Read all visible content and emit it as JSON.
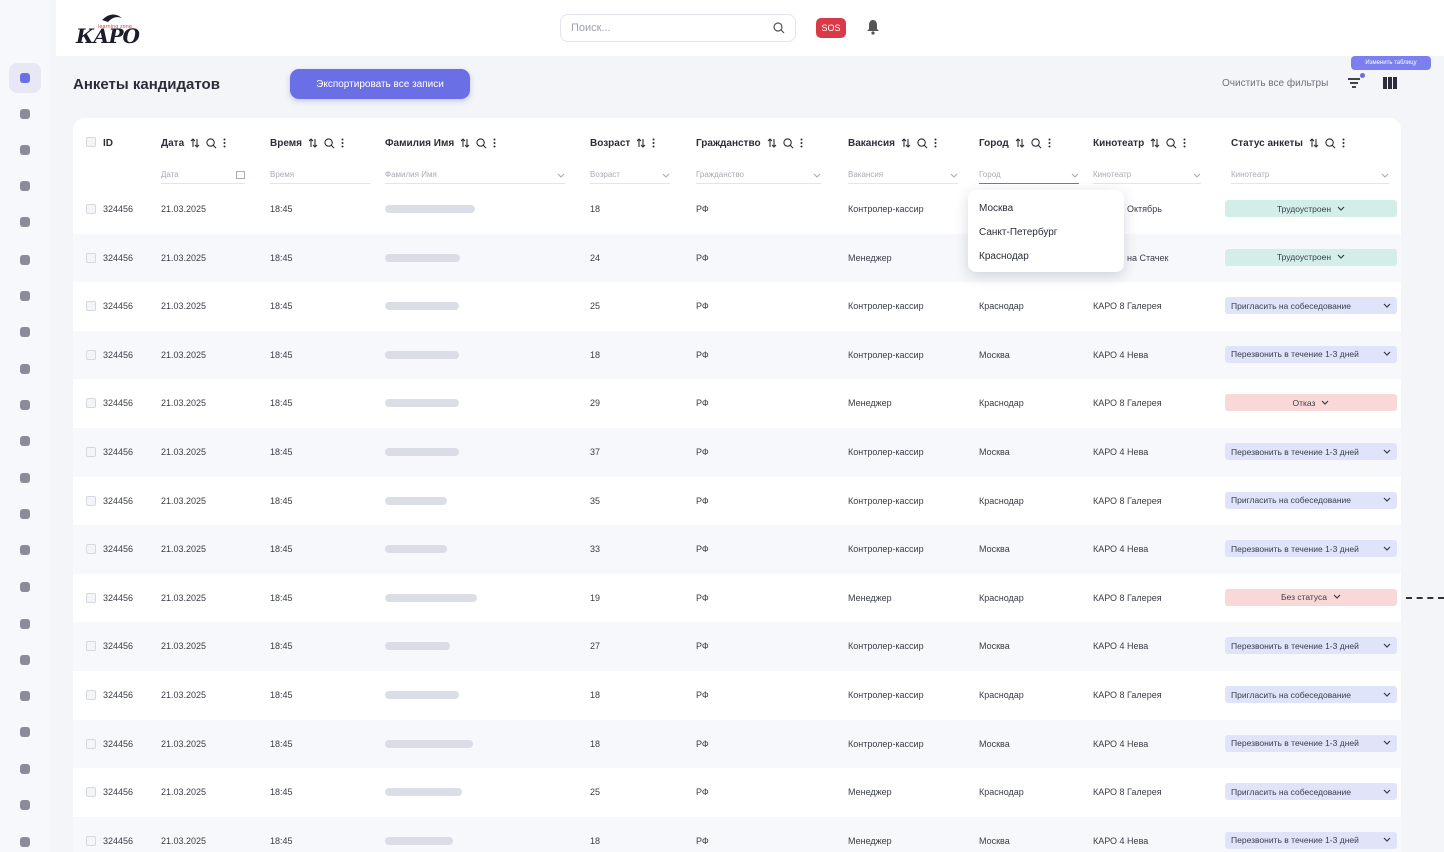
{
  "header": {
    "logo_text": "КАРО",
    "logo_sub": "learning zone",
    "search_placeholder": "Поиск...",
    "sos_label": "SOS"
  },
  "toolbar": {
    "title": "Анкеты кандидатов",
    "export_label": "Экспортировать все записи",
    "clear_filters_label": "Очистить все фильтры",
    "tooltip": "Изменить таблицу"
  },
  "sidebar": {
    "icons": [
      "hub-icon",
      "copy-icon",
      "network-icon",
      "book-icon",
      "book-open-icon",
      "edit-icon",
      "graduation-icon",
      "badge-icon",
      "swap-icon",
      "team-icon",
      "lightbulb-icon",
      "id-card-icon",
      "clipboard-icon",
      "clipboard-check-icon",
      "star-badge-icon",
      "thumb-up-icon",
      "camera-icon",
      "play-icon",
      "calendar-check-icon",
      "calendar-icon",
      "cinema-icon",
      "rocket-icon"
    ]
  },
  "table": {
    "columns": [
      {
        "key": "id",
        "label": "ID",
        "filter": ""
      },
      {
        "key": "date",
        "label": "Дата",
        "filter": "Дата"
      },
      {
        "key": "time",
        "label": "Время",
        "filter": "Время"
      },
      {
        "key": "name",
        "label": "Фамилия Имя",
        "filter": "Фамилия Имя"
      },
      {
        "key": "age",
        "label": "Возраст",
        "filter": "Возраст"
      },
      {
        "key": "citizenship",
        "label": "Гражданство",
        "filter": "Гражданство"
      },
      {
        "key": "vacancy",
        "label": "Вакансия",
        "filter": "Вакансия"
      },
      {
        "key": "city",
        "label": "Город",
        "filter": "Город"
      },
      {
        "key": "cinema",
        "label": "Кинотеатр",
        "filter": "Кинотеатр"
      },
      {
        "key": "status",
        "label": "Статус анкеты",
        "filter": "Кинотеатр"
      }
    ],
    "rows": [
      {
        "id": "324456",
        "date": "21.03.2025",
        "time": "18:45",
        "age": "18",
        "citizenship": "РФ",
        "vacancy": "Контролер-кассир",
        "city": "",
        "cinema": "Октябрь",
        "status": "Трудоустроен",
        "tone": "green"
      },
      {
        "id": "324456",
        "date": "21.03.2025",
        "time": "18:45",
        "age": "24",
        "citizenship": "РФ",
        "vacancy": "Менеджер",
        "city": "",
        "cinema": "на Стачек",
        "status": "Трудоустроен",
        "tone": "green"
      },
      {
        "id": "324456",
        "date": "21.03.2025",
        "time": "18:45",
        "age": "25",
        "citizenship": "РФ",
        "vacancy": "Контролер-кассир",
        "city": "Краснодар",
        "cinema": "КАРО 8 Галерея",
        "status": "Пригласить на собеседование",
        "tone": "blue"
      },
      {
        "id": "324456",
        "date": "21.03.2025",
        "time": "18:45",
        "age": "18",
        "citizenship": "РФ",
        "vacancy": "Контролер-кассир",
        "city": "Москва",
        "cinema": "КАРО 4 Нева",
        "status": "Перезвонить в течение 1-3 дней",
        "tone": "blue"
      },
      {
        "id": "324456",
        "date": "21.03.2025",
        "time": "18:45",
        "age": "29",
        "citizenship": "РФ",
        "vacancy": "Менеджер",
        "city": "Краснодар",
        "cinema": "КАРО 8 Галерея",
        "status": "Отказ",
        "tone": "red"
      },
      {
        "id": "324456",
        "date": "21.03.2025",
        "time": "18:45",
        "age": "37",
        "citizenship": "РФ",
        "vacancy": "Контролер-кассир",
        "city": "Москва",
        "cinema": "КАРО 4 Нева",
        "status": "Перезвонить в течение 1-3 дней",
        "tone": "blue"
      },
      {
        "id": "324456",
        "date": "21.03.2025",
        "time": "18:45",
        "age": "35",
        "citizenship": "РФ",
        "vacancy": "Контролер-кассир",
        "city": "Краснодар",
        "cinema": "КАРО 8 Галерея",
        "status": "Пригласить на собеседование",
        "tone": "blue"
      },
      {
        "id": "324456",
        "date": "21.03.2025",
        "time": "18:45",
        "age": "33",
        "citizenship": "РФ",
        "vacancy": "Контролер-кассир",
        "city": "Москва",
        "cinema": "КАРО 4 Нева",
        "status": "Перезвонить в течение 1-3 дней",
        "tone": "blue"
      },
      {
        "id": "324456",
        "date": "21.03.2025",
        "time": "18:45",
        "age": "19",
        "citizenship": "РФ",
        "vacancy": "Менеджер",
        "city": "Краснодар",
        "cinema": "КАРО 8 Галерея",
        "status": "Без статуса",
        "tone": "red"
      },
      {
        "id": "324456",
        "date": "21.03.2025",
        "time": "18:45",
        "age": "27",
        "citizenship": "РФ",
        "vacancy": "Контролер-кассир",
        "city": "Москва",
        "cinema": "КАРО 4 Нева",
        "status": "Перезвонить в течение 1-3 дней",
        "tone": "blue"
      },
      {
        "id": "324456",
        "date": "21.03.2025",
        "time": "18:45",
        "age": "18",
        "citizenship": "РФ",
        "vacancy": "Контролер-кассир",
        "city": "Краснодар",
        "cinema": "КАРО 8 Галерея",
        "status": "Пригласить на собеседование",
        "tone": "blue"
      },
      {
        "id": "324456",
        "date": "21.03.2025",
        "time": "18:45",
        "age": "18",
        "citizenship": "РФ",
        "vacancy": "Контролер-кассир",
        "city": "Москва",
        "cinema": "КАРО 4 Нева",
        "status": "Перезвонить в течение 1-3 дней",
        "tone": "blue"
      },
      {
        "id": "324456",
        "date": "21.03.2025",
        "time": "18:45",
        "age": "25",
        "citizenship": "РФ",
        "vacancy": "Менеджер",
        "city": "Краснодар",
        "cinema": "КАРО 8 Галерея",
        "status": "Пригласить на собеседование",
        "tone": "blue"
      },
      {
        "id": "324456",
        "date": "21.03.2025",
        "time": "18:45",
        "age": "18",
        "citizenship": "РФ",
        "vacancy": "Менеджер",
        "city": "Москва",
        "cinema": "КАРО 4 Нева",
        "status": "Перезвонить в течение 1-3 дней",
        "tone": "blue"
      }
    ]
  },
  "city_dropdown": {
    "options": [
      "Москва",
      "Санкт-Петербург",
      "Краснодар"
    ]
  },
  "colors": {
    "accent": "#6b6fe6",
    "status_green": "#d3eee9",
    "status_blue": "#dfe4fb",
    "status_red": "#f9d8d8",
    "sos": "#d93a47"
  }
}
